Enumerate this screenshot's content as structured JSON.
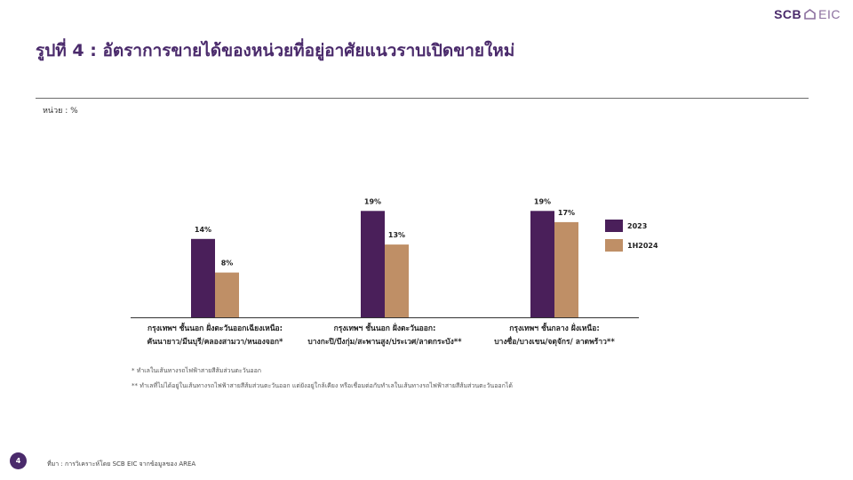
{
  "brand": {
    "name_left": "SCB",
    "name_right": "EIC",
    "primary_color": "#4a2a6b"
  },
  "title": "รูปที่ 4 : อัตราการขายได้ของหน่วยที่อยู่อาศัยแนวราบเปิดขายใหม่",
  "unit_label": "หน่วย : %",
  "notes": [
    "* ทำเลในเส้นทางรถไฟฟ้าสายสีส้มส่วนตะวันออก",
    "** ทำเลที่ไม่ได้อยู่ในเส้นทางรถไฟฟ้าสายสีส้มส่วนตะวันออก แต่ยังอยู่ใกล้เคียง หรือเชื่อมต่อกับทำเลในเส้นทางรถไฟฟ้าสายสีส้มส่วนตะวันออกได้"
  ],
  "page_number": "4",
  "source": "ที่มา : การวิเคราะห์โดย SCB EIC จากข้อมูลของ AREA",
  "chart_data": {
    "type": "bar",
    "categories": [
      [
        "กรุงเทพฯ ชั้นนอก ฝั่งตะวันออกเฉียงเหนือ:",
        "คันนายาว/มีนบุรี/คลองสามวา/หนองจอก*"
      ],
      [
        "กรุงเทพฯ ชั้นนอก ฝั่งตะวันออก:",
        "บางกะปิ/บึงกุ่ม/สะพานสูง/ประเวศ/ลาดกระบัง**"
      ],
      [
        "กรุงเทพฯ ชั้นกลาง ฝั่งเหนือ:",
        "บางซื่อ/บางเขน/จตุจักร/ ลาดพร้าว**"
      ]
    ],
    "series": [
      {
        "name": "2023",
        "values": [
          14,
          19,
          19
        ],
        "labels": [
          "14%",
          "19%",
          "19%"
        ],
        "color": "#4a1f5a"
      },
      {
        "name": "1H2024",
        "values": [
          8,
          13,
          17
        ],
        "labels": [
          "8%",
          "13%",
          "17%"
        ],
        "color": "#bf8f66"
      }
    ],
    "ylim": [
      0,
      20
    ],
    "legend_position": "right",
    "grid": false
  }
}
